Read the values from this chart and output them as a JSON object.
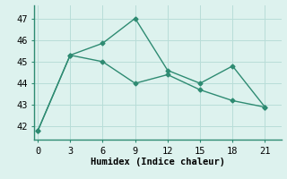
{
  "line1_x": [
    0,
    3,
    6,
    9,
    12,
    15,
    18,
    21
  ],
  "line1_y": [
    41.8,
    45.3,
    45.85,
    47.0,
    44.6,
    44.0,
    44.8,
    42.9
  ],
  "line2_x": [
    0,
    3,
    6,
    9,
    12,
    15,
    18,
    21
  ],
  "line2_y": [
    41.8,
    45.3,
    45.0,
    44.0,
    44.4,
    43.7,
    43.2,
    42.9
  ],
  "color": "#2e8b72",
  "bg_color": "#ddf2ee",
  "grid_color": "#b8ddd8",
  "spine_color": "#2e8b72",
  "xlabel": "Humidex (Indice chaleur)",
  "xticks": [
    0,
    3,
    6,
    9,
    12,
    15,
    18,
    21
  ],
  "yticks": [
    42,
    43,
    44,
    45,
    46,
    47
  ],
  "xlim": [
    -0.3,
    22.5
  ],
  "ylim": [
    41.4,
    47.6
  ],
  "label_fontsize": 7.5,
  "tick_fontsize": 7.5,
  "marker": "D",
  "markersize": 2.5,
  "linewidth": 1.0
}
